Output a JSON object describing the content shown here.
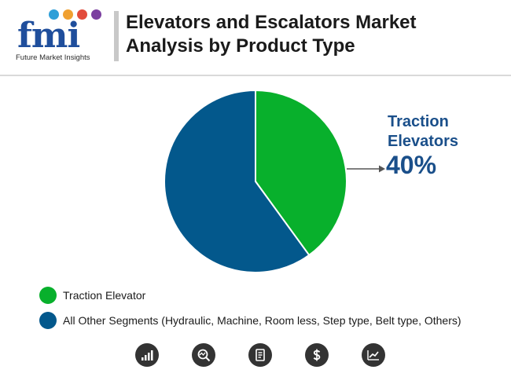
{
  "logo": {
    "word": "fmi",
    "tagline": "Future Market Insights",
    "dot_colors": [
      "#2e9fd8",
      "#f0a030",
      "#e24c3c",
      "#7b3fa0"
    ]
  },
  "title": "Elevators and Escalators Market Analysis by Product Type",
  "chart_data": {
    "type": "pie",
    "title": "",
    "slices": [
      {
        "label": "Traction Elevator",
        "value": 40,
        "color": "#08b02c"
      },
      {
        "label": "All Other Segments (Hydraulic, Machine, Room less, Step type, Belt type, Others)",
        "value": 60,
        "color": "#03588c"
      }
    ],
    "annotation": {
      "label": "Traction Elevators",
      "value": "40%",
      "target": "Traction Elevator"
    },
    "legend_position": "bottom-left"
  },
  "footer_icons": [
    "bar-chart-icon",
    "search-analytics-icon",
    "report-icon",
    "dollar-icon",
    "trend-chart-icon"
  ],
  "colors": {
    "accent_blue": "#1a4f8a",
    "icon_bg": "#333333"
  }
}
